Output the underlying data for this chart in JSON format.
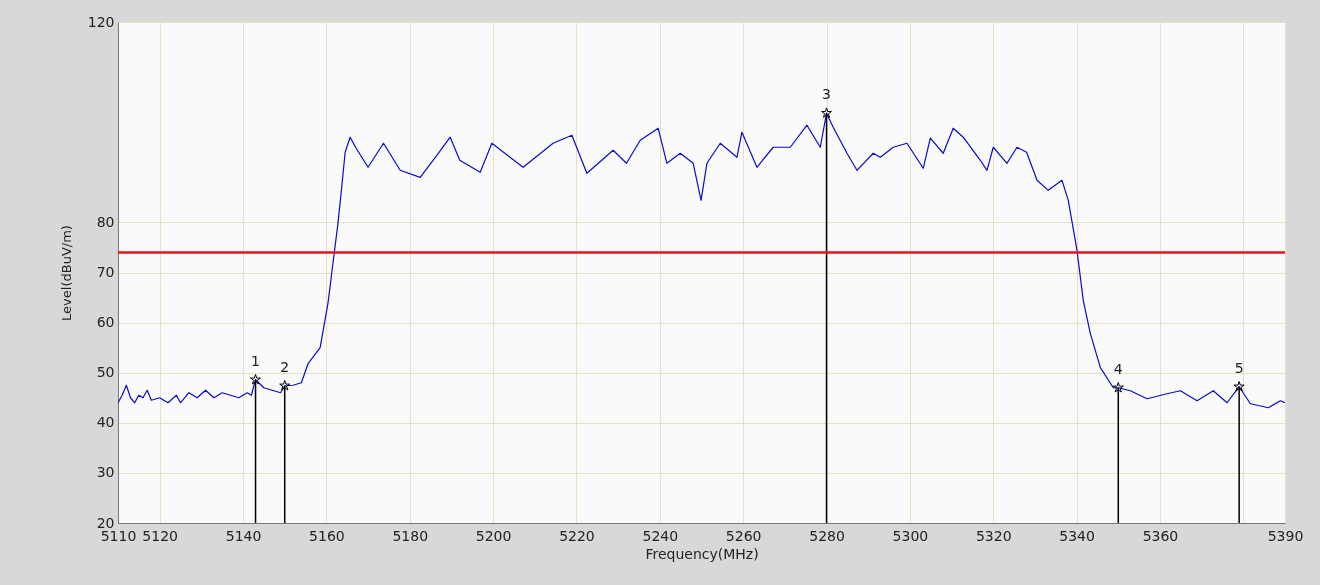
{
  "chart_data": {
    "type": "line",
    "xlabel": "Frequency(MHz)",
    "ylabel": "Level(dBuV/m)",
    "xlim": [
      5110,
      5390
    ],
    "ylim": [
      20,
      120
    ],
    "xticks": [
      5110,
      5120,
      5140,
      5160,
      5180,
      5200,
      5220,
      5240,
      5260,
      5280,
      5300,
      5320,
      5340,
      5360,
      {
        "value": 5380,
        "label": null
      },
      5390
    ],
    "yticks": [
      20,
      30,
      40,
      50,
      60,
      70,
      80,
      120
    ],
    "grid": true,
    "series": [
      {
        "color": "#0a0ad0",
        "x": [
          5110,
          5111,
          5112,
          5113,
          5114,
          5115,
          5116,
          5117,
          5118,
          5120,
          5122,
          5124,
          5125,
          5127,
          5129,
          5131,
          5133,
          5135,
          5137,
          5139,
          5141,
          5142,
          5143,
          5145,
          5147,
          5149,
          5150,
          5152,
          5154,
          5155.6,
          5158.5,
          5160.4,
          5161.3,
          5162.8,
          5163.6,
          5164.5,
          5165.7,
          5167,
          5170,
          5173.7,
          5177.7,
          5182.5,
          5186.5,
          5189.7,
          5192,
          5196.9,
          5199.7,
          5207.2,
          5214.4,
          5218.9,
          5222.5,
          5228.8,
          5232,
          5235.3,
          5239.6,
          5241.7,
          5244.9,
          5248,
          5249.9,
          5251.3,
          5254.5,
          5258.5,
          5259.7,
          5263.3,
          5267.2,
          5271.3,
          5275.3,
          5278.5,
          5280,
          5281.6,
          5284.9,
          5287.3,
          5291.2,
          5292.9,
          5296,
          5299.3,
          5303.2,
          5304.9,
          5308,
          5310.4,
          5312.8,
          5316.9,
          5318.5,
          5320,
          5323.3,
          5325.7,
          5328,
          5330.5,
          5333.2,
          5336.5,
          5338,
          5340.1,
          5341.6,
          5343.3,
          5345.7,
          5348.8,
          5350,
          5352.9,
          5356.9,
          5361.7,
          5364.9,
          5368.9,
          5372.8,
          5376.1,
          5379,
          5381.7,
          5386,
          5388.9,
          5390
        ],
        "values": [
          44,
          45.5,
          47.5,
          45,
          44,
          45.5,
          45,
          46.5,
          44.5,
          45,
          44,
          45.5,
          44,
          46,
          45,
          46.5,
          45,
          46,
          45.5,
          45,
          46,
          45.5,
          48.6,
          47,
          46.5,
          46,
          47.4,
          47.5,
          48,
          51.8,
          55,
          64,
          70,
          80,
          86.4,
          94,
          97,
          95,
          91,
          95.8,
          90.4,
          89,
          93.4,
          97,
          92.4,
          90,
          95.8,
          91,
          95.8,
          97.4,
          89.8,
          94.4,
          91.8,
          96.4,
          98.8,
          91.8,
          93.8,
          91.8,
          84.4,
          91.8,
          95.8,
          93,
          98,
          91,
          95,
          95,
          99.4,
          95,
          101.8,
          99,
          93.8,
          90.4,
          93.8,
          93,
          95,
          95.8,
          90.8,
          96.8,
          93.8,
          98.8,
          97,
          92.4,
          90.4,
          95,
          91.8,
          95,
          94,
          88.4,
          86.4,
          88.4,
          84.4,
          74.4,
          64.4,
          57.8,
          51,
          47,
          47,
          46.4,
          44.8,
          45.8,
          46.4,
          44.4,
          46.4,
          44,
          47.2,
          43.8,
          43,
          44.4,
          44
        ]
      },
      {
        "type": "lollipop",
        "color": "#000000",
        "marker": "star",
        "x": [
          5143,
          5150,
          5280,
          5350,
          5379
        ],
        "values": [
          48.6,
          47.4,
          101.8,
          47,
          47.2
        ]
      }
    ],
    "ref_lines": [
      {
        "axis": "y",
        "value": 74,
        "color": "#e8141b"
      }
    ],
    "annotations": [
      {
        "text": "1",
        "x": 5143,
        "y": 48.6
      },
      {
        "text": "2",
        "x": 5150,
        "y": 47.4
      },
      {
        "text": "3",
        "x": 5280,
        "y": 101.8
      },
      {
        "text": "4",
        "x": 5350,
        "y": 47
      },
      {
        "text": "5",
        "x": 5379,
        "y": 47.2
      }
    ]
  }
}
